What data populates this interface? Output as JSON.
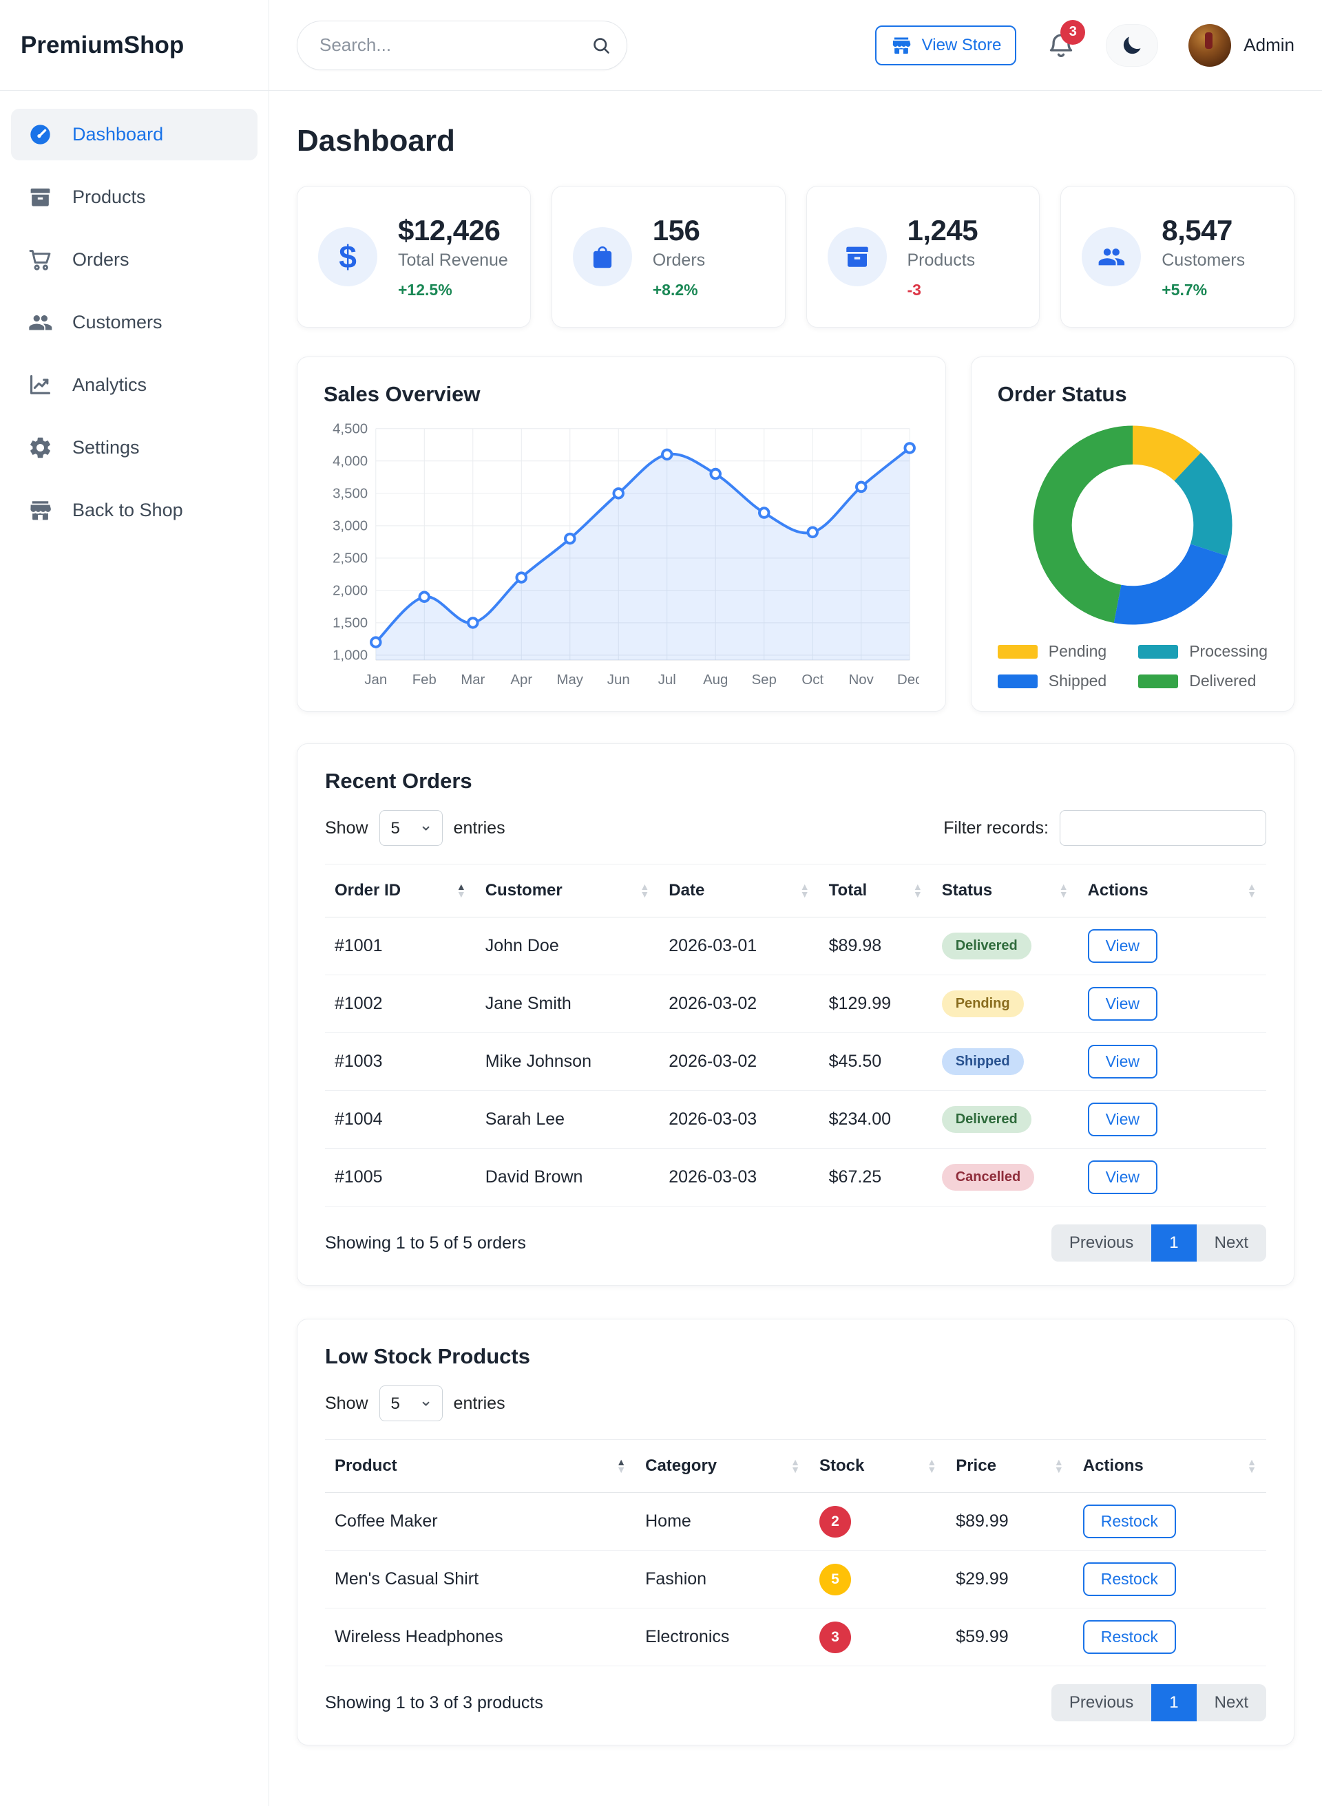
{
  "brand": "PremiumShop",
  "colors": {
    "accent": "#1a73e8",
    "positive": "#198754",
    "negative": "#dc3545",
    "sidebar_icon": "#5f6b7a",
    "muted": "#6c757d"
  },
  "sidebar": {
    "items": [
      {
        "label": "Dashboard",
        "icon": "speedometer-icon",
        "active": true
      },
      {
        "label": "Products",
        "icon": "box-icon",
        "active": false
      },
      {
        "label": "Orders",
        "icon": "cart-icon",
        "active": false
      },
      {
        "label": "Customers",
        "icon": "users-icon",
        "active": false
      },
      {
        "label": "Analytics",
        "icon": "chart-line-icon",
        "active": false
      },
      {
        "label": "Settings",
        "icon": "gear-icon",
        "active": false
      },
      {
        "label": "Back to Shop",
        "icon": "store-icon",
        "active": false
      }
    ]
  },
  "header": {
    "search_placeholder": "Search...",
    "view_store_label": "View Store",
    "notification_count": "3",
    "user_name": "Admin"
  },
  "page_title": "Dashboard",
  "stats": [
    {
      "icon": "dollar-icon",
      "value": "$12,426",
      "label": "Total Revenue",
      "delta": "+12.5%",
      "trend": "up"
    },
    {
      "icon": "shopping-bag-icon",
      "value": "156",
      "label": "Orders",
      "delta": "+8.2%",
      "trend": "up"
    },
    {
      "icon": "box-icon",
      "value": "1,245",
      "label": "Products",
      "delta": "-3",
      "trend": "down"
    },
    {
      "icon": "users-icon",
      "value": "8,547",
      "label": "Customers",
      "delta": "+5.7%",
      "trend": "up"
    }
  ],
  "chart_data": [
    {
      "id": "sales_overview",
      "type": "line",
      "title": "Sales Overview",
      "x": [
        "Jan",
        "Feb",
        "Mar",
        "Apr",
        "May",
        "Jun",
        "Jul",
        "Aug",
        "Sep",
        "Oct",
        "Nov",
        "Dec"
      ],
      "series": [
        {
          "name": "Sales",
          "values": [
            1200,
            1900,
            1500,
            2200,
            2800,
            3500,
            4100,
            3800,
            3200,
            2900,
            3600,
            4200
          ]
        }
      ],
      "ylim": [
        1000,
        4500
      ],
      "yticks": [
        1000,
        1500,
        2000,
        2500,
        3000,
        3500,
        4000,
        4500
      ],
      "grid": true,
      "smooth": true,
      "markers": "hollow-circle",
      "line_color": "#3b82f6",
      "area_fill": "rgba(59,130,246,0.13)"
    },
    {
      "id": "order_status",
      "type": "pie",
      "donut": true,
      "title": "Order Status",
      "labels": [
        "Pending",
        "Processing",
        "Shipped",
        "Delivered"
      ],
      "values": [
        12,
        18,
        23,
        47
      ],
      "values_note": "percent, estimated from arc angles",
      "colors": [
        "#fcc21c",
        "#1a9fb5",
        "#1a73e8",
        "#34a447"
      ],
      "legend_position": "bottom"
    }
  ],
  "recent_orders": {
    "title": "Recent Orders",
    "show_label": "Show",
    "page_size": "5",
    "entries_label": "entries",
    "filter_label": "Filter records:",
    "filter_value": "",
    "columns": [
      "Order ID",
      "Customer",
      "Date",
      "Total",
      "Status",
      "Actions"
    ],
    "sort": {
      "column": "Order ID",
      "direction": "asc"
    },
    "rows": [
      {
        "order_id": "#1001",
        "customer": "John Doe",
        "date": "2026-03-01",
        "total": "$89.98",
        "status": "Delivered",
        "action": "View"
      },
      {
        "order_id": "#1002",
        "customer": "Jane Smith",
        "date": "2026-03-02",
        "total": "$129.99",
        "status": "Pending",
        "action": "View"
      },
      {
        "order_id": "#1003",
        "customer": "Mike Johnson",
        "date": "2026-03-02",
        "total": "$45.50",
        "status": "Shipped",
        "action": "View"
      },
      {
        "order_id": "#1004",
        "customer": "Sarah Lee",
        "date": "2026-03-03",
        "total": "$234.00",
        "status": "Delivered",
        "action": "View"
      },
      {
        "order_id": "#1005",
        "customer": "David Brown",
        "date": "2026-03-03",
        "total": "$67.25",
        "status": "Cancelled",
        "action": "View"
      }
    ],
    "status_styles": {
      "Delivered": {
        "bg": "#d5ead9",
        "fg": "#2f6b3c"
      },
      "Pending": {
        "bg": "#fdeebb",
        "fg": "#8a6d1e"
      },
      "Shipped": {
        "bg": "#c8defb",
        "fg": "#28518f"
      },
      "Cancelled": {
        "bg": "#f5d3d8",
        "fg": "#8f2d3b"
      }
    },
    "footer_text": "Showing 1 to 5 of 5 orders",
    "pagination": {
      "previous": "Previous",
      "current_page": "1",
      "next": "Next"
    }
  },
  "low_stock": {
    "title": "Low Stock Products",
    "show_label": "Show",
    "page_size": "5",
    "entries_label": "entries",
    "columns": [
      "Product",
      "Category",
      "Stock",
      "Price",
      "Actions"
    ],
    "sort": {
      "column": "Product",
      "direction": "asc"
    },
    "rows": [
      {
        "product": "Coffee Maker",
        "category": "Home",
        "stock": "2",
        "stock_color": "#dc3545",
        "price": "$89.99",
        "action": "Restock"
      },
      {
        "product": "Men's Casual Shirt",
        "category": "Fashion",
        "stock": "5",
        "stock_color": "#ffc107",
        "price": "$29.99",
        "action": "Restock"
      },
      {
        "product": "Wireless Headphones",
        "category": "Electronics",
        "stock": "3",
        "stock_color": "#dc3545",
        "price": "$59.99",
        "action": "Restock"
      }
    ],
    "footer_text": "Showing 1 to 3 of 3 products",
    "pagination": {
      "previous": "Previous",
      "current_page": "1",
      "next": "Next"
    }
  }
}
